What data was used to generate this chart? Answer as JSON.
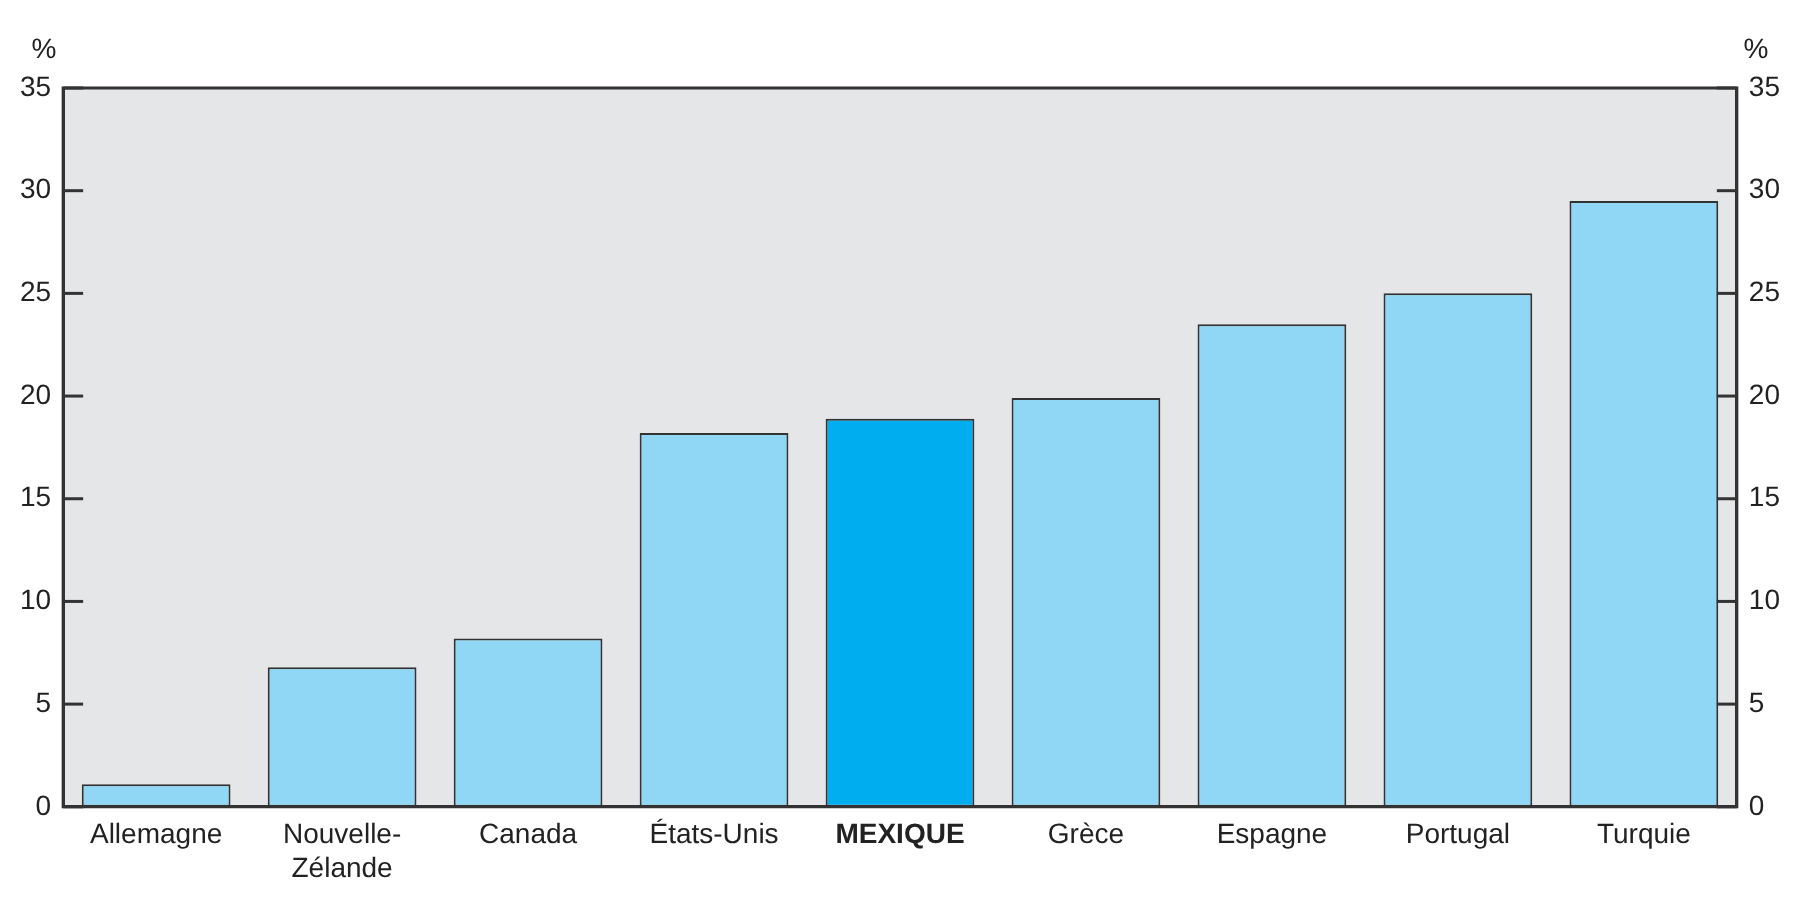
{
  "chart_data": {
    "type": "bar",
    "ylabel": "%",
    "y2label": "%",
    "categories": [
      "Allemagne",
      "Nouvelle-Zélande",
      "Canada",
      "États-Unis",
      "MEXIQUE",
      "Grèce",
      "Espagne",
      "Portugal",
      "Turquie"
    ],
    "values": [
      1.1,
      6.8,
      8.2,
      18.2,
      18.9,
      19.9,
      23.5,
      25.0,
      29.5
    ],
    "colors": [
      "#8fd7f5",
      "#8fd7f5",
      "#8fd7f5",
      "#8fd7f5",
      "#00aeef",
      "#8fd7f5",
      "#8fd7f5",
      "#8fd7f5",
      "#8fd7f5"
    ],
    "ylim": [
      0,
      35
    ],
    "yticks": [
      0,
      5,
      10,
      15,
      20,
      25,
      30,
      35
    ],
    "y2lim": [
      0,
      35
    ],
    "y2ticks": [
      0,
      5,
      10,
      15,
      20,
      25,
      30,
      35
    ],
    "grid": false,
    "legend": false
  }
}
